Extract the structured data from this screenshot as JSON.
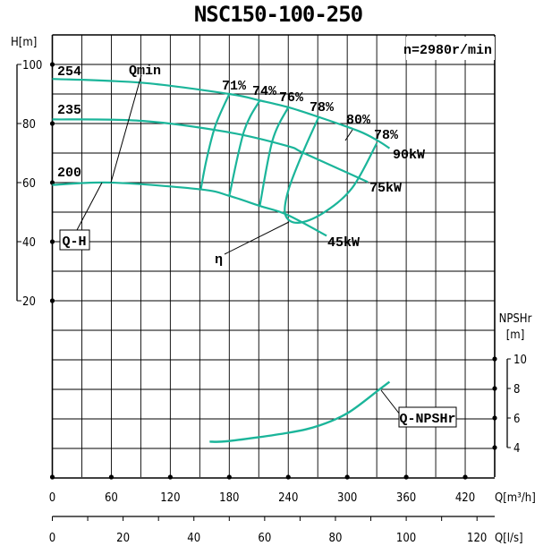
{
  "chart_data": {
    "type": "line",
    "title": "NSC150-100-250",
    "speed_label": "n=2980r/min",
    "colors": {
      "curve": "#1bb59a",
      "grid": "#000000"
    },
    "grid": true,
    "x_axis": {
      "label": "Q[m³/h]",
      "range": [
        0,
        450
      ],
      "ticks": [
        0,
        60,
        120,
        180,
        240,
        300,
        360,
        420
      ]
    },
    "x2_axis": {
      "label": "Q[l/s]",
      "range": [
        0,
        125
      ],
      "ticks": [
        0,
        20,
        40,
        60,
        80,
        100,
        120
      ]
    },
    "y_axis": {
      "label": "H[m]",
      "range": [
        -40,
        110
      ],
      "ticks": [
        20,
        40,
        60,
        80,
        100
      ]
    },
    "y2_axis": {
      "label_line1": "NPSHr",
      "label_line2": "[m]",
      "range": [
        2,
        10
      ],
      "ticks": [
        4,
        6,
        8,
        10
      ]
    },
    "head_curves": [
      {
        "name": "254",
        "power": "90kW",
        "points": [
          [
            0,
            95.1
          ],
          [
            91,
            93.8
          ],
          [
            180,
            90.0
          ],
          [
            211,
            87.8
          ],
          [
            240,
            85.5
          ],
          [
            271,
            82.2
          ],
          [
            312,
            77.4
          ],
          [
            332,
            74
          ],
          [
            343,
            71.6
          ]
        ]
      },
      {
        "name": "235",
        "power": "75kW",
        "points": [
          [
            0,
            81.4
          ],
          [
            91,
            80.9
          ],
          [
            180,
            77
          ],
          [
            239,
            72.4
          ],
          [
            257,
            69.8
          ],
          [
            321,
            60.2
          ]
        ]
      },
      {
        "name": "200",
        "power": "45kW",
        "points": [
          [
            0,
            59.2
          ],
          [
            60,
            60
          ],
          [
            151,
            57.7
          ],
          [
            180,
            55.5
          ],
          [
            211,
            52.1
          ],
          [
            239,
            49.1
          ],
          [
            279,
            42
          ]
        ]
      }
    ],
    "efficiency_curves": [
      {
        "name": "71%",
        "points": [
          [
            180,
            90
          ],
          [
            166,
            79.4
          ],
          [
            157,
            68
          ],
          [
            151,
            57.7
          ]
        ]
      },
      {
        "name": "74%",
        "points": [
          [
            211,
            87.8
          ],
          [
            195,
            77.4
          ],
          [
            180,
            55.5
          ]
        ]
      },
      {
        "name": "76%",
        "points": [
          [
            240,
            85.5
          ],
          [
            224,
            74.3
          ],
          [
            211,
            52.1
          ]
        ]
      },
      {
        "name": "78%",
        "points": [
          [
            271,
            82.2
          ],
          [
            255,
            70.3
          ],
          [
            240,
            57.3
          ],
          [
            237,
            49.1
          ],
          [
            250,
            46.4
          ],
          [
            275,
            49.6
          ],
          [
            305,
            58.2
          ],
          [
            330,
            73.3
          ]
        ]
      }
    ],
    "efficiency_labels": [
      "71%",
      "74%",
      "76%",
      "78%",
      "80%",
      "78%"
    ],
    "npshr_curve": {
      "name": "Q-NPSHr",
      "points": [
        [
          160,
          4.4
        ],
        [
          180,
          4.44
        ],
        [
          240,
          5.0
        ],
        [
          272,
          5.5
        ],
        [
          301,
          6.36
        ],
        [
          332,
          7.9
        ],
        [
          343,
          8.45
        ]
      ]
    },
    "annotations": {
      "qh": "Q-H",
      "qmin": "Qmin",
      "eta": "η",
      "npsh": "Q-NPSHr"
    }
  }
}
